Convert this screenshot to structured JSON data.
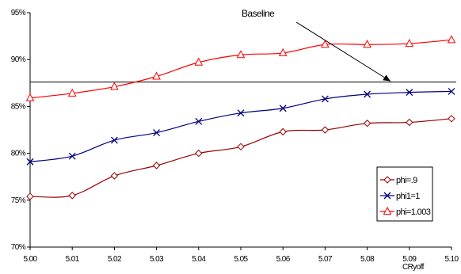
{
  "chart_data": {
    "type": "line",
    "x": [
      5.0,
      5.01,
      5.02,
      5.03,
      5.04,
      5.05,
      5.06,
      5.07,
      5.08,
      5.09,
      5.1
    ],
    "x_tick_labels": [
      "5.00",
      "5.01",
      "5.02",
      "5.03",
      "5.04",
      "5.05",
      "5.06",
      "5.07",
      "5.08",
      "5.09",
      "5.10"
    ],
    "xlabel": "CRyoff",
    "ylabel": "",
    "title": "",
    "ylim": [
      0.7,
      0.95
    ],
    "y_ticks": [
      0.7,
      0.75,
      0.8,
      0.85,
      0.9,
      0.95
    ],
    "y_tick_labels": [
      "70%",
      "75%",
      "80%",
      "85%",
      "90%",
      "95%"
    ],
    "grid": false,
    "legend_position": "right",
    "series": [
      {
        "name": "phi=.9",
        "color": "#990000",
        "marker": "diamond",
        "values": [
          0.754,
          0.755,
          0.776,
          0.787,
          0.8,
          0.807,
          0.823,
          0.825,
          0.832,
          0.833,
          0.837
        ]
      },
      {
        "name": "phi1=1",
        "color": "#000080",
        "marker": "x",
        "values": [
          0.791,
          0.797,
          0.814,
          0.822,
          0.834,
          0.843,
          0.848,
          0.858,
          0.863,
          0.865,
          0.866
        ]
      },
      {
        "name": "phi=1.003",
        "color": "#ff0000",
        "marker": "triangle",
        "values": [
          0.859,
          0.864,
          0.871,
          0.882,
          0.897,
          0.905,
          0.907,
          0.916,
          0.916,
          0.917,
          0.921
        ]
      }
    ],
    "reference_line": {
      "value": 0.876,
      "color": "#000000"
    },
    "annotation": {
      "text": "Baseline",
      "arrow": true
    }
  }
}
